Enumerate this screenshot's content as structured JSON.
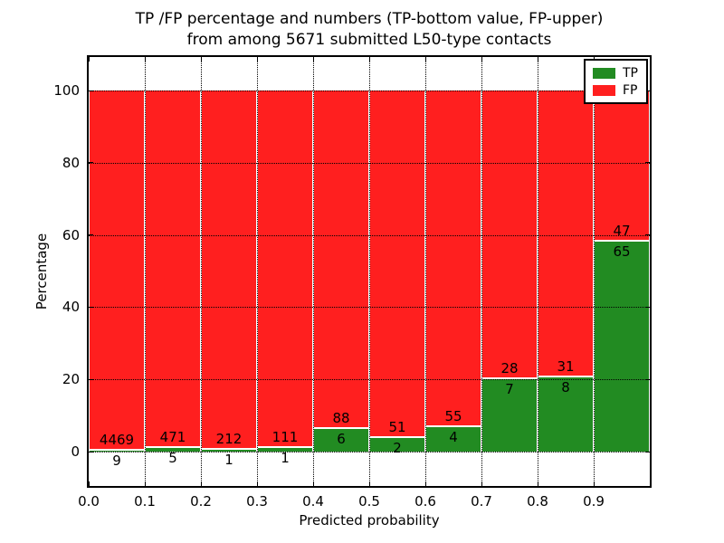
{
  "chart_data": {
    "type": "bar",
    "stacked": true,
    "normalized_to_percent": 100,
    "title_line1": "TP /FP percentage and numbers (TP-bottom value, FP-upper)",
    "title_line2": "from among 5671 submitted L50-type contacts",
    "xlabel": "Predicted probability",
    "ylabel": "Percentage",
    "total_contacts": 5671,
    "x_tick_labels": [
      "0.0",
      "0.1",
      "0.2",
      "0.3",
      "0.4",
      "0.5",
      "0.6",
      "0.7",
      "0.8",
      "0.9"
    ],
    "y_ticks": [
      0,
      20,
      40,
      60,
      80,
      100
    ],
    "y_tick_labels": [
      "0",
      "20",
      "40",
      "60",
      "80",
      "100"
    ],
    "xlim": [
      0.0,
      1.0
    ],
    "ylim": [
      -10,
      110
    ],
    "grid": "dotted black, drawn above bars",
    "categories": [
      "0.0–0.1",
      "0.1–0.2",
      "0.2–0.3",
      "0.3–0.4",
      "0.4–0.5",
      "0.5–0.6",
      "0.6–0.7",
      "0.7–0.8",
      "0.8–0.9",
      "0.9–1.0"
    ],
    "series": [
      {
        "name": "TP",
        "color": "#228b22",
        "values": [
          9,
          5,
          1,
          1,
          6,
          2,
          4,
          7,
          8,
          65
        ]
      },
      {
        "name": "FP",
        "color": "#ff1f1f",
        "values": [
          4469,
          471,
          212,
          111,
          88,
          51,
          55,
          28,
          31,
          47
        ]
      }
    ],
    "tp_percent": [
      0.2,
      1.05,
      0.47,
      0.89,
      6.38,
      3.77,
      6.78,
      20.0,
      20.51,
      58.04
    ],
    "legend": {
      "position": "upper right",
      "entries": [
        {
          "label": "TP",
          "color": "#228b22"
        },
        {
          "label": "FP",
          "color": "#ff1f1f"
        }
      ]
    }
  },
  "colors": {
    "tp": "#228b22",
    "fp": "#ff1f1f",
    "grid": "#000000",
    "frame": "#000000",
    "background": "#ffffff"
  }
}
